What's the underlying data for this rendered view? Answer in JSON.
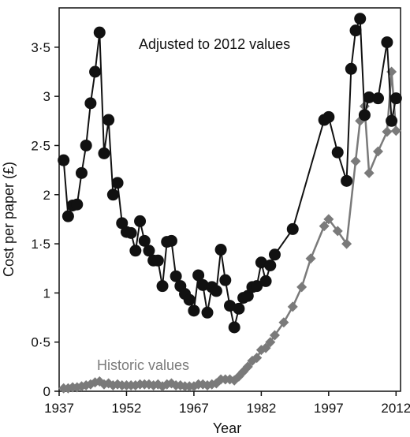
{
  "chart_data": {
    "type": "line",
    "title": "",
    "xlabel": "Year",
    "ylabel": "Cost per paper (£)",
    "xlim": [
      1937,
      2013
    ],
    "ylim": [
      0,
      3.9
    ],
    "x_ticks": [
      1937,
      1952,
      1967,
      1982,
      1997,
      2012
    ],
    "y_ticks": [
      {
        "value": 0,
        "label": "0"
      },
      {
        "value": 0.5,
        "label": "0·5"
      },
      {
        "value": 1,
        "label": "1"
      },
      {
        "value": 1.5,
        "label": "1·5"
      },
      {
        "value": 2,
        "label": "2"
      },
      {
        "value": 2.5,
        "label": "2·5"
      },
      {
        "value": 3,
        "label": "3"
      },
      {
        "value": 3.5,
        "label": "3·5"
      }
    ],
    "grid": false,
    "annotations": [
      {
        "text": "Adjusted to 2012 values",
        "series": 0
      },
      {
        "text": "Historic values",
        "series": 1
      }
    ],
    "series": [
      {
        "color": "#111111",
        "marker": "circle",
        "x": [
          1938,
          1939,
          1940,
          1941,
          1942,
          1943,
          1944,
          1945,
          1946,
          1947,
          1948,
          1949,
          1950,
          1951,
          1952,
          1953,
          1954,
          1955,
          1956,
          1957,
          1958,
          1959,
          1960,
          1961,
          1962,
          1963,
          1964,
          1965,
          1966,
          1967,
          1968,
          1969,
          1970,
          1971,
          1972,
          1973,
          1974,
          1975,
          1976,
          1977,
          1978,
          1979,
          1980,
          1981,
          1982,
          1983,
          1984,
          1985,
          1989,
          1996,
          1997,
          1999,
          2001,
          2002,
          2003,
          2004,
          2005,
          2006,
          2008,
          2010,
          2011,
          2012
        ],
        "values": [
          2.35,
          1.78,
          1.89,
          1.9,
          2.22,
          2.5,
          2.93,
          3.25,
          3.65,
          2.42,
          2.76,
          2.0,
          2.12,
          1.71,
          1.62,
          1.61,
          1.43,
          1.73,
          1.53,
          1.43,
          1.33,
          1.33,
          1.07,
          1.52,
          1.53,
          1.17,
          1.07,
          0.99,
          0.93,
          0.82,
          1.18,
          1.08,
          0.8,
          1.06,
          1.02,
          1.44,
          1.13,
          0.87,
          0.65,
          0.84,
          0.95,
          0.97,
          1.06,
          1.07,
          1.31,
          1.12,
          1.28,
          1.39,
          1.65,
          2.76,
          2.79,
          2.43,
          2.14,
          3.28,
          3.67,
          3.79,
          2.81,
          2.99,
          2.98,
          3.55,
          2.75,
          2.98
        ]
      },
      {
        "color": "#7a7a7a",
        "marker": "diamond",
        "x": [
          1938,
          1939,
          1940,
          1941,
          1942,
          1943,
          1944,
          1945,
          1946,
          1947,
          1948,
          1949,
          1950,
          1951,
          1952,
          1953,
          1954,
          1955,
          1956,
          1957,
          1958,
          1959,
          1960,
          1961,
          1962,
          1963,
          1964,
          1965,
          1966,
          1967,
          1968,
          1969,
          1970,
          1971,
          1972,
          1973,
          1974,
          1975,
          1976,
          1977,
          1978,
          1979,
          1980,
          1981,
          1982,
          1983,
          1984,
          1985,
          1987,
          1989,
          1991,
          1993,
          1996,
          1997,
          1999,
          2001,
          2003,
          2004,
          2005,
          2006,
          2008,
          2010,
          2011,
          2012
        ],
        "values": [
          0.03,
          0.03,
          0.04,
          0.04,
          0.05,
          0.06,
          0.07,
          0.09,
          0.1,
          0.07,
          0.08,
          0.06,
          0.07,
          0.06,
          0.06,
          0.06,
          0.06,
          0.07,
          0.07,
          0.07,
          0.06,
          0.07,
          0.05,
          0.07,
          0.08,
          0.06,
          0.06,
          0.05,
          0.05,
          0.05,
          0.07,
          0.07,
          0.06,
          0.07,
          0.08,
          0.12,
          0.12,
          0.12,
          0.11,
          0.15,
          0.2,
          0.25,
          0.31,
          0.34,
          0.42,
          0.44,
          0.5,
          0.57,
          0.7,
          0.86,
          1.06,
          1.35,
          1.68,
          1.75,
          1.63,
          1.5,
          2.34,
          2.75,
          2.9,
          2.22,
          2.44,
          2.64,
          3.25,
          2.65
        ]
      }
    ]
  }
}
